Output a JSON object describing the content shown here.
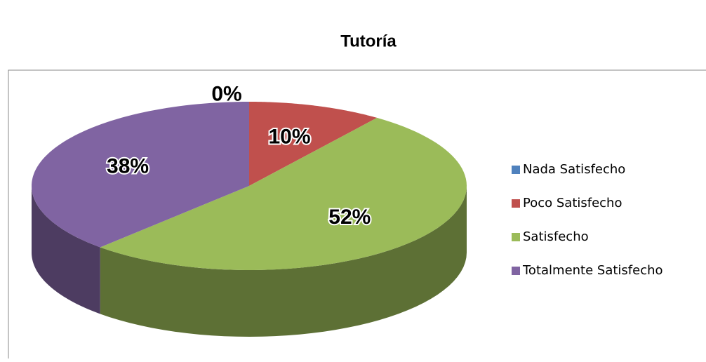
{
  "chart_data": {
    "type": "pie",
    "title": "Tutoría",
    "categories": [
      "Nada Satisfecho",
      "Poco Satisfecho",
      "Satisfecho",
      "Totalmente Satisfecho"
    ],
    "values": [
      0,
      10,
      52,
      38
    ],
    "value_labels": [
      "0%",
      "10%",
      "52%",
      "38%"
    ],
    "colors": [
      "#4f81bd",
      "#c0504d",
      "#9bbb59",
      "#8064a2"
    ],
    "legend": "right"
  }
}
